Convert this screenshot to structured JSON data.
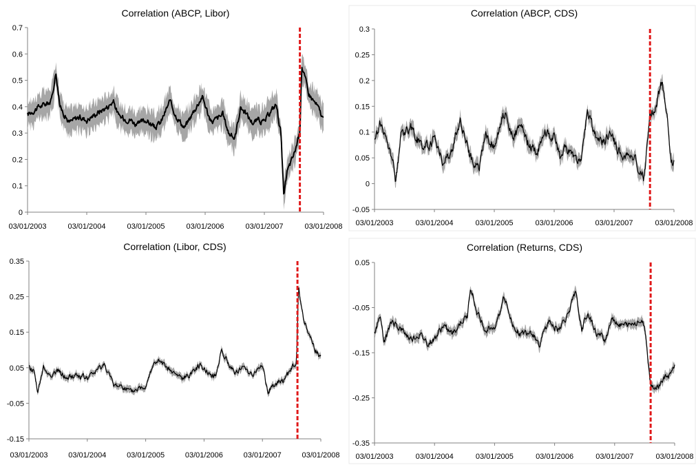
{
  "colors": {
    "band": "#a6a6a6",
    "line": "#000000",
    "marker": "#e0191a"
  },
  "chart_data": [
    {
      "type": "line",
      "title": "Correlation (ABCP, Libor)",
      "xlabel": "",
      "ylabel": "",
      "x_tick_labels": [
        "03/01/2003",
        "03/01/2004",
        "03/01/2005",
        "03/01/2006",
        "03/01/2007",
        "03/01/2008"
      ],
      "y_tick_labels": [
        "0",
        "0.1",
        "0.2",
        "0.3",
        "0.4",
        "0.5",
        "0.6",
        "0.7"
      ],
      "xlim": [
        2003.0,
        2008.0
      ],
      "ylim": [
        0,
        0.7
      ],
      "vline_x": 2007.6,
      "band_halfwidth": 0.045,
      "noise": 0.02,
      "series": [
        {
          "x": [
            2003.0,
            2003.2,
            2003.4,
            2003.48,
            2003.55,
            2003.7,
            2003.85,
            2004.0,
            2004.2,
            2004.35,
            2004.45,
            2004.55,
            2004.75,
            2004.85,
            2005.0,
            2005.15,
            2005.25,
            2005.4,
            2005.5,
            2005.65,
            2005.8,
            2005.95,
            2006.1,
            2006.3,
            2006.4,
            2006.5,
            2006.6,
            2006.8,
            2006.9,
            2007.0,
            2007.1,
            2007.2,
            2007.28,
            2007.33,
            2007.38,
            2007.5,
            2007.6,
            2007.63,
            2007.75,
            2007.9,
            2008.0
          ],
          "y": [
            0.37,
            0.4,
            0.42,
            0.53,
            0.4,
            0.34,
            0.36,
            0.35,
            0.38,
            0.4,
            0.42,
            0.36,
            0.35,
            0.33,
            0.35,
            0.32,
            0.34,
            0.42,
            0.37,
            0.32,
            0.38,
            0.44,
            0.34,
            0.37,
            0.3,
            0.28,
            0.4,
            0.34,
            0.35,
            0.34,
            0.38,
            0.41,
            0.3,
            0.05,
            0.15,
            0.22,
            0.3,
            0.56,
            0.45,
            0.4,
            0.35
          ]
        }
      ]
    },
    {
      "type": "line",
      "title": "Correlation (ABCP, CDS)",
      "xlabel": "",
      "ylabel": "",
      "x_tick_labels": [
        "03/01/2003",
        "03/01/2004",
        "03/01/2005",
        "03/01/2006",
        "03/01/2007",
        "03/01/2008"
      ],
      "y_tick_labels": [
        "-0.05",
        "0",
        "0.05",
        "0.1",
        "0.15",
        "0.2",
        "0.25",
        "0.3"
      ],
      "xlim": [
        2003.0,
        2008.0
      ],
      "ylim": [
        -0.05,
        0.3
      ],
      "vline_x": 2007.6,
      "band_halfwidth": 0.012,
      "noise": 0.018,
      "series": [
        {
          "x": [
            2003.0,
            2003.1,
            2003.2,
            2003.3,
            2003.35,
            2003.45,
            2003.6,
            2003.75,
            2003.9,
            2004.0,
            2004.15,
            2004.3,
            2004.35,
            2004.45,
            2004.6,
            2004.75,
            2004.85,
            2005.0,
            2005.1,
            2005.2,
            2005.3,
            2005.45,
            2005.55,
            2005.7,
            2005.85,
            2006.0,
            2006.1,
            2006.2,
            2006.35,
            2006.45,
            2006.55,
            2006.7,
            2006.85,
            2006.95,
            2007.05,
            2007.15,
            2007.3,
            2007.4,
            2007.5,
            2007.6,
            2007.7,
            2007.8,
            2007.88,
            2007.95,
            2008.0
          ],
          "y": [
            0.08,
            0.12,
            0.08,
            0.05,
            0.0,
            0.1,
            0.11,
            0.08,
            0.07,
            0.09,
            0.04,
            0.06,
            0.1,
            0.12,
            0.05,
            0.03,
            0.1,
            0.07,
            0.12,
            0.14,
            0.09,
            0.11,
            0.08,
            0.06,
            0.1,
            0.09,
            0.05,
            0.07,
            0.05,
            0.04,
            0.14,
            0.09,
            0.08,
            0.1,
            0.07,
            0.05,
            0.06,
            0.03,
            0.01,
            0.13,
            0.15,
            0.2,
            0.14,
            0.05,
            0.04
          ]
        }
      ]
    },
    {
      "type": "line",
      "title": "Correlation (Libor, CDS)",
      "xlabel": "",
      "ylabel": "",
      "x_tick_labels": [
        "03/01/2003",
        "03/01/2004",
        "03/01/2005",
        "03/01/2006",
        "03/01/2007",
        "03/01/2008"
      ],
      "y_tick_labels": [
        "-0.15",
        "-0.05",
        "0.05",
        "0.15",
        "0.25",
        "0.35"
      ],
      "xlim": [
        2003.0,
        2008.0
      ],
      "ylim": [
        -0.15,
        0.35
      ],
      "vline_x": 2007.6,
      "band_halfwidth": 0.008,
      "noise": 0.015,
      "series": [
        {
          "x": [
            2003.0,
            2003.1,
            2003.15,
            2003.25,
            2003.35,
            2003.5,
            2003.65,
            2003.8,
            2004.0,
            2004.15,
            2004.3,
            2004.45,
            2004.6,
            2004.75,
            2004.85,
            2005.0,
            2005.1,
            2005.2,
            2005.35,
            2005.5,
            2005.65,
            2005.8,
            2005.95,
            2006.1,
            2006.2,
            2006.3,
            2006.45,
            2006.55,
            2006.7,
            2006.85,
            2007.0,
            2007.1,
            2007.15,
            2007.3,
            2007.4,
            2007.5,
            2007.58,
            2007.62,
            2007.7,
            2007.8,
            2007.9,
            2008.0
          ],
          "y": [
            0.05,
            0.04,
            -0.02,
            0.05,
            0.03,
            0.04,
            0.02,
            0.03,
            0.02,
            0.04,
            0.06,
            0.0,
            0.0,
            -0.02,
            -0.01,
            0.0,
            0.05,
            0.07,
            0.05,
            0.03,
            0.02,
            0.04,
            0.06,
            0.03,
            0.03,
            0.1,
            0.05,
            0.04,
            0.05,
            0.03,
            0.06,
            -0.03,
            0.0,
            0.01,
            0.02,
            0.05,
            0.06,
            0.27,
            0.19,
            0.14,
            0.1,
            0.08
          ]
        }
      ]
    },
    {
      "type": "line",
      "title": "Correlation (Returns, CDS)",
      "xlabel": "",
      "ylabel": "",
      "x_tick_labels": [
        "03/01/2003",
        "03/01/2004",
        "03/01/2005",
        "03/01/2006",
        "03/01/2007",
        "03/01/2008"
      ],
      "y_tick_labels": [
        "-0.35",
        "-0.25",
        "-0.15",
        "-0.05",
        "0.05"
      ],
      "xlim": [
        2003.0,
        2008.0
      ],
      "ylim": [
        -0.35,
        0.05
      ],
      "vline_x": 2007.6,
      "band_halfwidth": 0.009,
      "noise": 0.014,
      "series": [
        {
          "x": [
            2003.0,
            2003.1,
            2003.15,
            2003.3,
            2003.45,
            2003.6,
            2003.75,
            2003.9,
            2004.0,
            2004.15,
            2004.3,
            2004.45,
            2004.55,
            2004.6,
            2004.7,
            2004.85,
            2005.0,
            2005.1,
            2005.15,
            2005.3,
            2005.45,
            2005.6,
            2005.75,
            2005.9,
            2006.05,
            2006.2,
            2006.35,
            2006.45,
            2006.55,
            2006.7,
            2006.85,
            2006.95,
            2007.1,
            2007.25,
            2007.4,
            2007.5,
            2007.6,
            2007.7,
            2007.8,
            2007.9,
            2008.0
          ],
          "y": [
            -0.11,
            -0.06,
            -0.13,
            -0.08,
            -0.1,
            -0.12,
            -0.11,
            -0.13,
            -0.12,
            -0.09,
            -0.11,
            -0.08,
            -0.07,
            0.0,
            -0.06,
            -0.1,
            -0.09,
            -0.06,
            -0.02,
            -0.09,
            -0.11,
            -0.1,
            -0.13,
            -0.08,
            -0.1,
            -0.07,
            -0.02,
            -0.1,
            -0.06,
            -0.11,
            -0.12,
            -0.07,
            -0.09,
            -0.09,
            -0.08,
            -0.09,
            -0.22,
            -0.23,
            -0.21,
            -0.2,
            -0.18
          ]
        }
      ]
    }
  ]
}
